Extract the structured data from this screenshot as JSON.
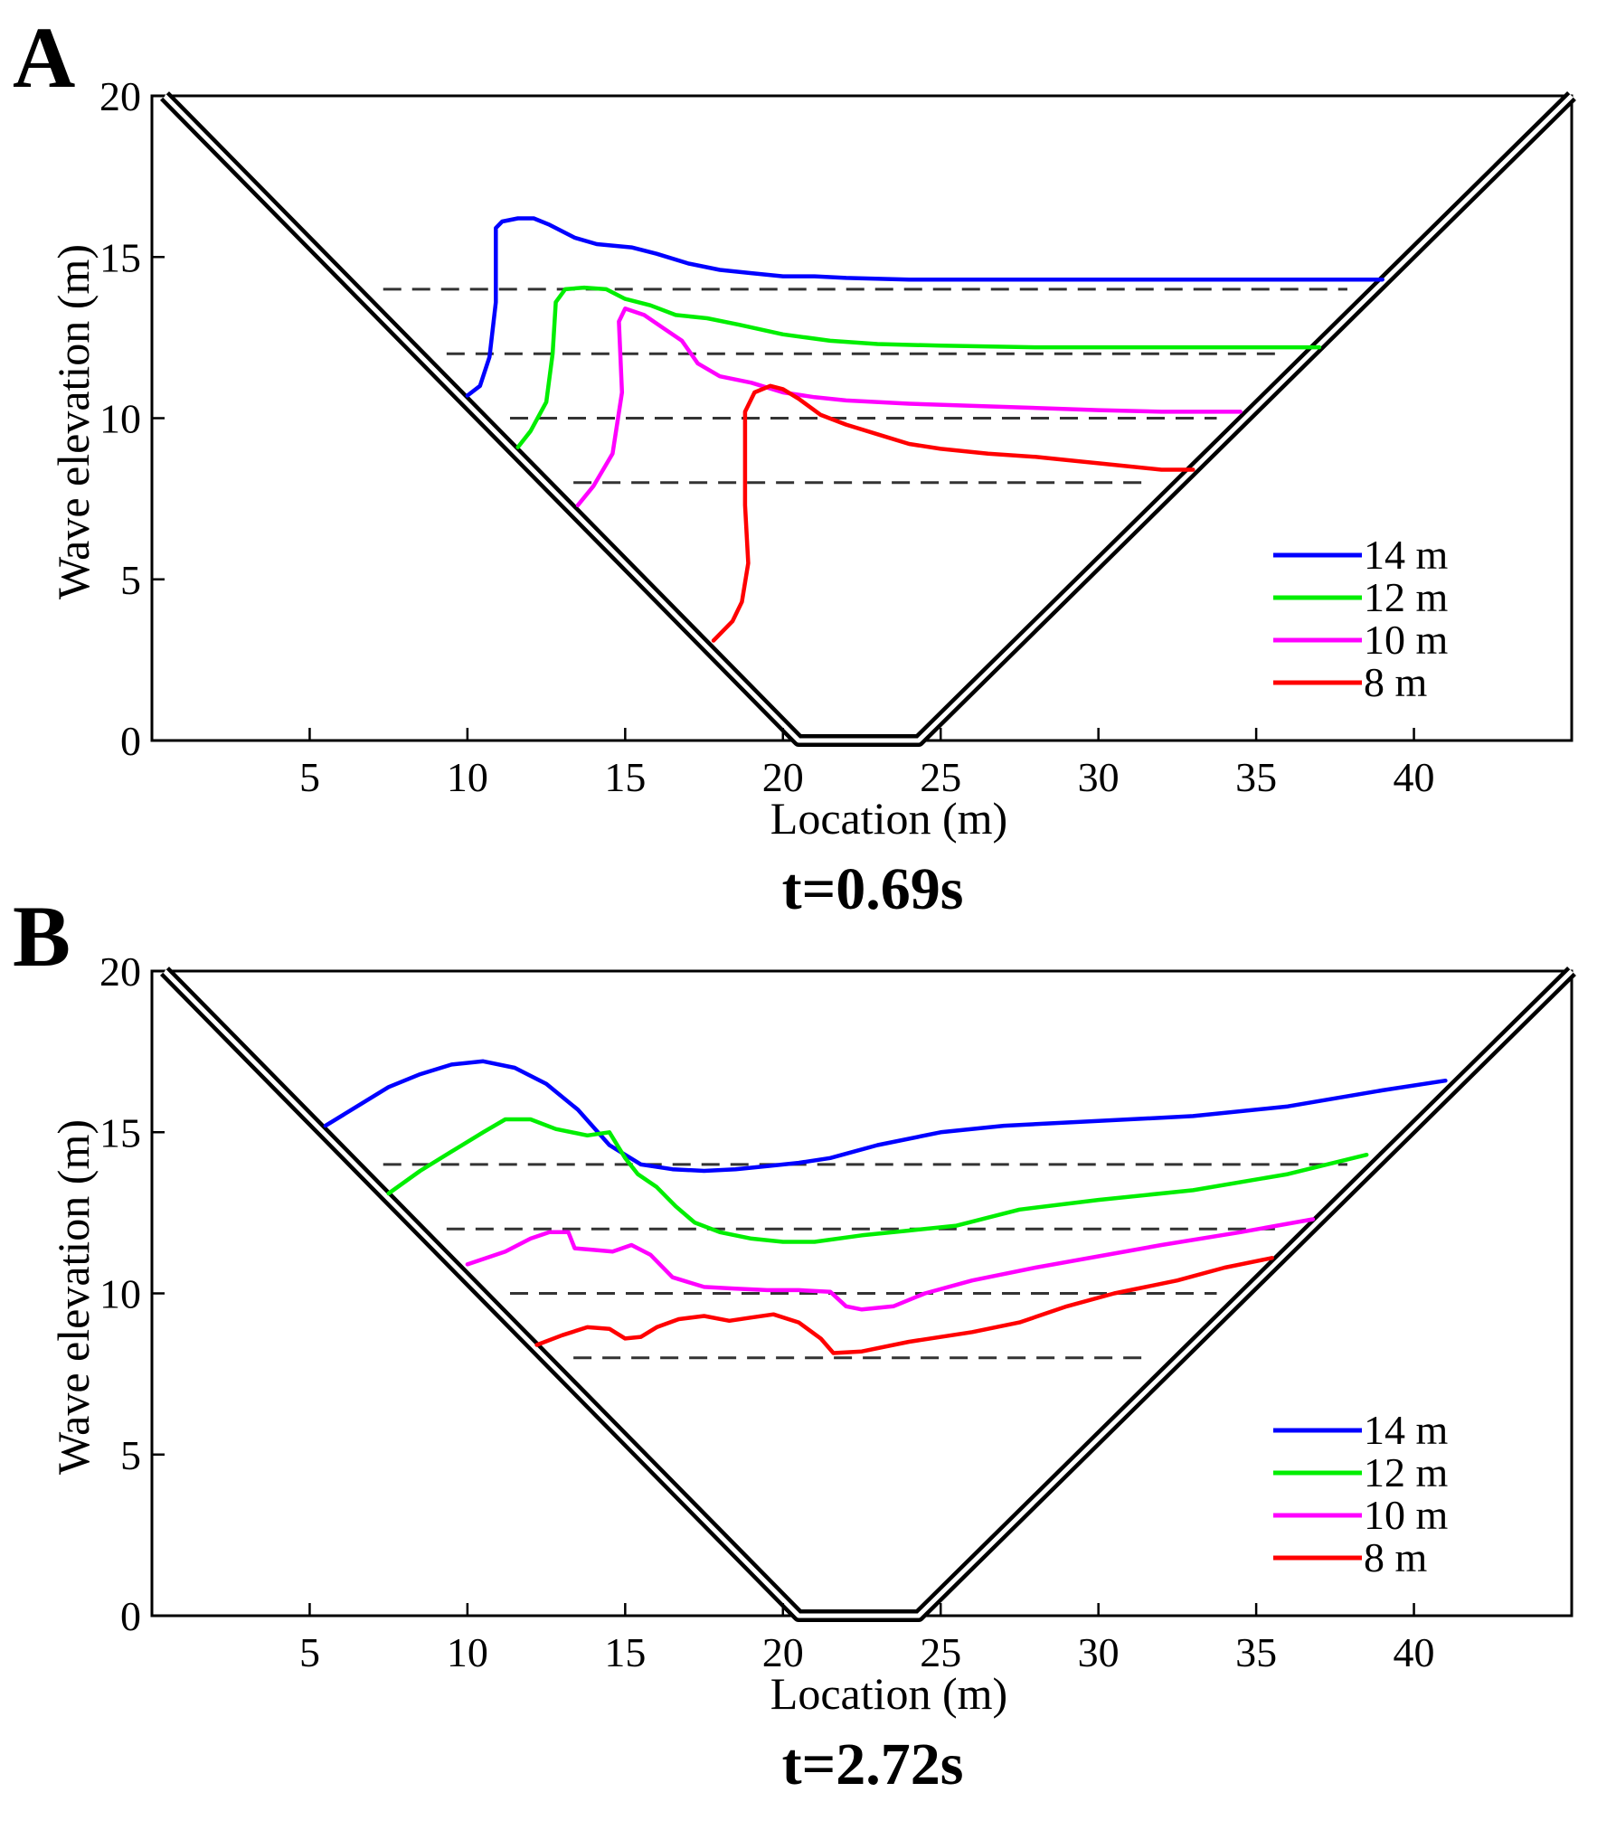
{
  "chart_data": [
    {
      "panel": "A",
      "type": "line",
      "time_label": "t=0.69s",
      "xlabel": "Location (m)",
      "ylabel": "Wave elevation (m)",
      "xlim": [
        0,
        45
      ],
      "ylim": [
        0,
        20
      ],
      "xticks": [
        5,
        10,
        15,
        20,
        25,
        30,
        35,
        40
      ],
      "yticks": [
        0,
        5,
        10,
        15,
        20
      ],
      "legend_position": "bottom-right",
      "valley": {
        "left_top": [
          0.4,
          20
        ],
        "left_bottom": [
          20.5,
          0
        ],
        "right_bottom": [
          24.3,
          0
        ],
        "right_top": [
          45,
          20
        ]
      },
      "reference_levels": [
        14,
        12,
        10,
        8
      ],
      "series": [
        {
          "name": "14 m",
          "color": "#0000ff",
          "x": [
            10.0,
            10.4,
            10.7,
            10.9,
            10.9,
            11.1,
            11.6,
            12.1,
            12.6,
            13.4,
            14.1,
            15.2,
            16.0,
            17.0,
            18.0,
            19.0,
            20.0,
            21.0,
            22.0,
            24.0,
            26.0,
            28.0,
            30.0,
            32.0,
            34.0,
            36.0,
            38.0,
            39.0
          ],
          "y": [
            10.7,
            11.0,
            11.9,
            13.6,
            15.9,
            16.1,
            16.2,
            16.2,
            16.0,
            15.6,
            15.4,
            15.3,
            15.1,
            14.8,
            14.6,
            14.5,
            14.4,
            14.4,
            14.35,
            14.3,
            14.3,
            14.3,
            14.3,
            14.3,
            14.3,
            14.3,
            14.3,
            14.3
          ]
        },
        {
          "name": "12 m",
          "color": "#00ee00",
          "x": [
            11.6,
            12.0,
            12.5,
            12.7,
            12.8,
            13.1,
            13.7,
            14.4,
            15.0,
            15.8,
            16.6,
            17.6,
            18.6,
            20.0,
            21.5,
            23.0,
            25.0,
            28.0,
            31.0,
            34.0,
            37.0
          ],
          "y": [
            9.1,
            9.6,
            10.5,
            12.0,
            13.6,
            14.0,
            14.05,
            14.0,
            13.7,
            13.5,
            13.2,
            13.1,
            12.9,
            12.6,
            12.4,
            12.3,
            12.25,
            12.2,
            12.2,
            12.2,
            12.2
          ]
        },
        {
          "name": "10 m",
          "color": "#ff00ff",
          "x": [
            13.5,
            14.0,
            14.6,
            14.9,
            14.8,
            15.0,
            15.6,
            16.2,
            16.8,
            17.3,
            18.0,
            19.0,
            20.0,
            21.0,
            22.0,
            24.0,
            27.0,
            30.0,
            32.0,
            34.5
          ],
          "y": [
            7.3,
            7.9,
            8.9,
            10.8,
            13.0,
            13.4,
            13.2,
            12.8,
            12.4,
            11.7,
            11.3,
            11.1,
            10.8,
            10.65,
            10.55,
            10.45,
            10.35,
            10.25,
            10.2,
            10.2
          ]
        },
        {
          "name": "8 m",
          "color": "#ff0000",
          "x": [
            17.8,
            18.4,
            18.7,
            18.9,
            18.8,
            18.8,
            19.1,
            19.6,
            20.0,
            20.5,
            21.2,
            22.0,
            23.0,
            24.0,
            25.0,
            26.5,
            28.0,
            30.0,
            32.0,
            33.0
          ],
          "y": [
            3.1,
            3.7,
            4.3,
            5.5,
            7.3,
            10.2,
            10.8,
            11.0,
            10.9,
            10.6,
            10.1,
            9.8,
            9.5,
            9.2,
            9.05,
            8.9,
            8.8,
            8.6,
            8.4,
            8.4
          ]
        }
      ]
    },
    {
      "panel": "B",
      "type": "line",
      "time_label": "t=2.72s",
      "xlabel": "Location (m)",
      "ylabel": "Wave elevation (m)",
      "xlim": [
        0,
        45
      ],
      "ylim": [
        0,
        20
      ],
      "xticks": [
        5,
        10,
        15,
        20,
        25,
        30,
        35,
        40
      ],
      "yticks": [
        0,
        5,
        10,
        15,
        20
      ],
      "legend_position": "bottom-right",
      "valley": {
        "left_top": [
          0.4,
          20
        ],
        "left_bottom": [
          20.5,
          0
        ],
        "right_bottom": [
          24.3,
          0
        ],
        "right_top": [
          45,
          20
        ]
      },
      "reference_levels": [
        14,
        12,
        10,
        8
      ],
      "series": [
        {
          "name": "14 m",
          "color": "#0000ff",
          "x": [
            5.5,
            6.5,
            7.5,
            8.5,
            9.5,
            10.5,
            11.5,
            12.5,
            13.5,
            14.5,
            15.5,
            16.5,
            17.5,
            18.5,
            19.5,
            20.5,
            21.5,
            23.0,
            25.0,
            27.0,
            30.0,
            33.0,
            36.0,
            39.0,
            41.0
          ],
          "y": [
            15.2,
            15.8,
            16.4,
            16.8,
            17.1,
            17.2,
            17.0,
            16.5,
            15.7,
            14.6,
            14.0,
            13.85,
            13.8,
            13.85,
            13.95,
            14.05,
            14.2,
            14.6,
            15.0,
            15.2,
            15.35,
            15.5,
            15.8,
            16.3,
            16.6
          ]
        },
        {
          "name": "12 m",
          "color": "#00ee00",
          "x": [
            7.5,
            8.5,
            9.5,
            10.5,
            11.2,
            12.0,
            12.8,
            13.8,
            14.5,
            15.0,
            15.4,
            16.0,
            16.6,
            17.2,
            18.0,
            19.0,
            20.0,
            21.0,
            22.5,
            24.0,
            25.5,
            27.5,
            30.0,
            33.0,
            36.0,
            38.5
          ],
          "y": [
            13.1,
            13.8,
            14.4,
            15.0,
            15.4,
            15.4,
            15.1,
            14.9,
            15.0,
            14.2,
            13.7,
            13.3,
            12.7,
            12.2,
            11.9,
            11.7,
            11.6,
            11.6,
            11.8,
            11.95,
            12.1,
            12.6,
            12.9,
            13.2,
            13.7,
            14.3
          ]
        },
        {
          "name": "10 m",
          "color": "#ff00ff",
          "x": [
            10.0,
            11.2,
            12.0,
            12.6,
            13.2,
            13.4,
            14.0,
            14.6,
            15.2,
            15.8,
            16.5,
            17.5,
            18.5,
            19.5,
            20.5,
            21.5,
            22.0,
            22.5,
            23.5,
            24.5,
            26.0,
            28.0,
            30.0,
            32.0,
            34.5,
            36.8
          ],
          "y": [
            10.9,
            11.3,
            11.7,
            11.9,
            11.9,
            11.4,
            11.35,
            11.3,
            11.5,
            11.2,
            10.5,
            10.2,
            10.15,
            10.1,
            10.1,
            10.05,
            9.6,
            9.5,
            9.6,
            10.0,
            10.4,
            10.8,
            11.15,
            11.5,
            11.9,
            12.3
          ]
        },
        {
          "name": "8 m",
          "color": "#ff0000",
          "x": [
            12.2,
            13.0,
            13.8,
            14.5,
            15.0,
            15.5,
            16.0,
            16.7,
            17.5,
            18.3,
            19.0,
            19.7,
            20.5,
            21.2,
            21.6,
            22.5,
            24.0,
            26.0,
            27.5,
            29.0,
            30.5,
            32.5,
            34.0,
            35.5
          ],
          "y": [
            8.4,
            8.7,
            8.95,
            8.9,
            8.6,
            8.65,
            8.95,
            9.2,
            9.3,
            9.15,
            9.25,
            9.35,
            9.1,
            8.6,
            8.15,
            8.2,
            8.5,
            8.8,
            9.1,
            9.6,
            10.0,
            10.4,
            10.8,
            11.1
          ]
        }
      ]
    }
  ]
}
